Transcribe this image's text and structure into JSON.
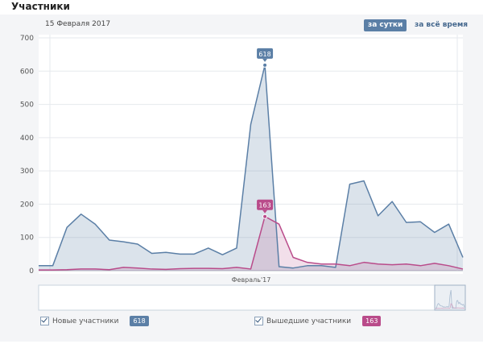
{
  "header": {
    "title": "Участники",
    "date": "15 Февраля 2017"
  },
  "toolbar": {
    "per_day": "за сутки",
    "all_time": "за всё время"
  },
  "legend": {
    "new": {
      "label": "Новые участники",
      "value": "618"
    },
    "left": {
      "label": "Вышедшие участники",
      "value": "163"
    }
  },
  "colors": {
    "new": "#5b7fa6",
    "left": "#b94b8a",
    "accent": "#5b7fa6"
  },
  "chart_data": {
    "type": "area",
    "ylim": [
      0,
      700
    ],
    "yticks": [
      0,
      100,
      200,
      300,
      400,
      500,
      600,
      700
    ],
    "xlabel": "Февраль'17",
    "x_count": 31,
    "series": [
      {
        "name": "Новые участники",
        "values": [
          15,
          15,
          130,
          170,
          140,
          92,
          87,
          80,
          52,
          55,
          50,
          50,
          68,
          48,
          68,
          440,
          618,
          12,
          8,
          15,
          15,
          10,
          260,
          270,
          165,
          208,
          145,
          147,
          115,
          140,
          40
        ]
      },
      {
        "name": "Вышедшие участники",
        "values": [
          2,
          2,
          3,
          5,
          5,
          3,
          10,
          8,
          5,
          4,
          6,
          7,
          7,
          6,
          10,
          5,
          163,
          140,
          40,
          25,
          20,
          20,
          15,
          25,
          20,
          18,
          20,
          15,
          22,
          15,
          5
        ]
      }
    ],
    "annotations": [
      {
        "series": 0,
        "index": 16,
        "text": "618"
      },
      {
        "series": 1,
        "index": 16,
        "text": "163"
      }
    ]
  }
}
